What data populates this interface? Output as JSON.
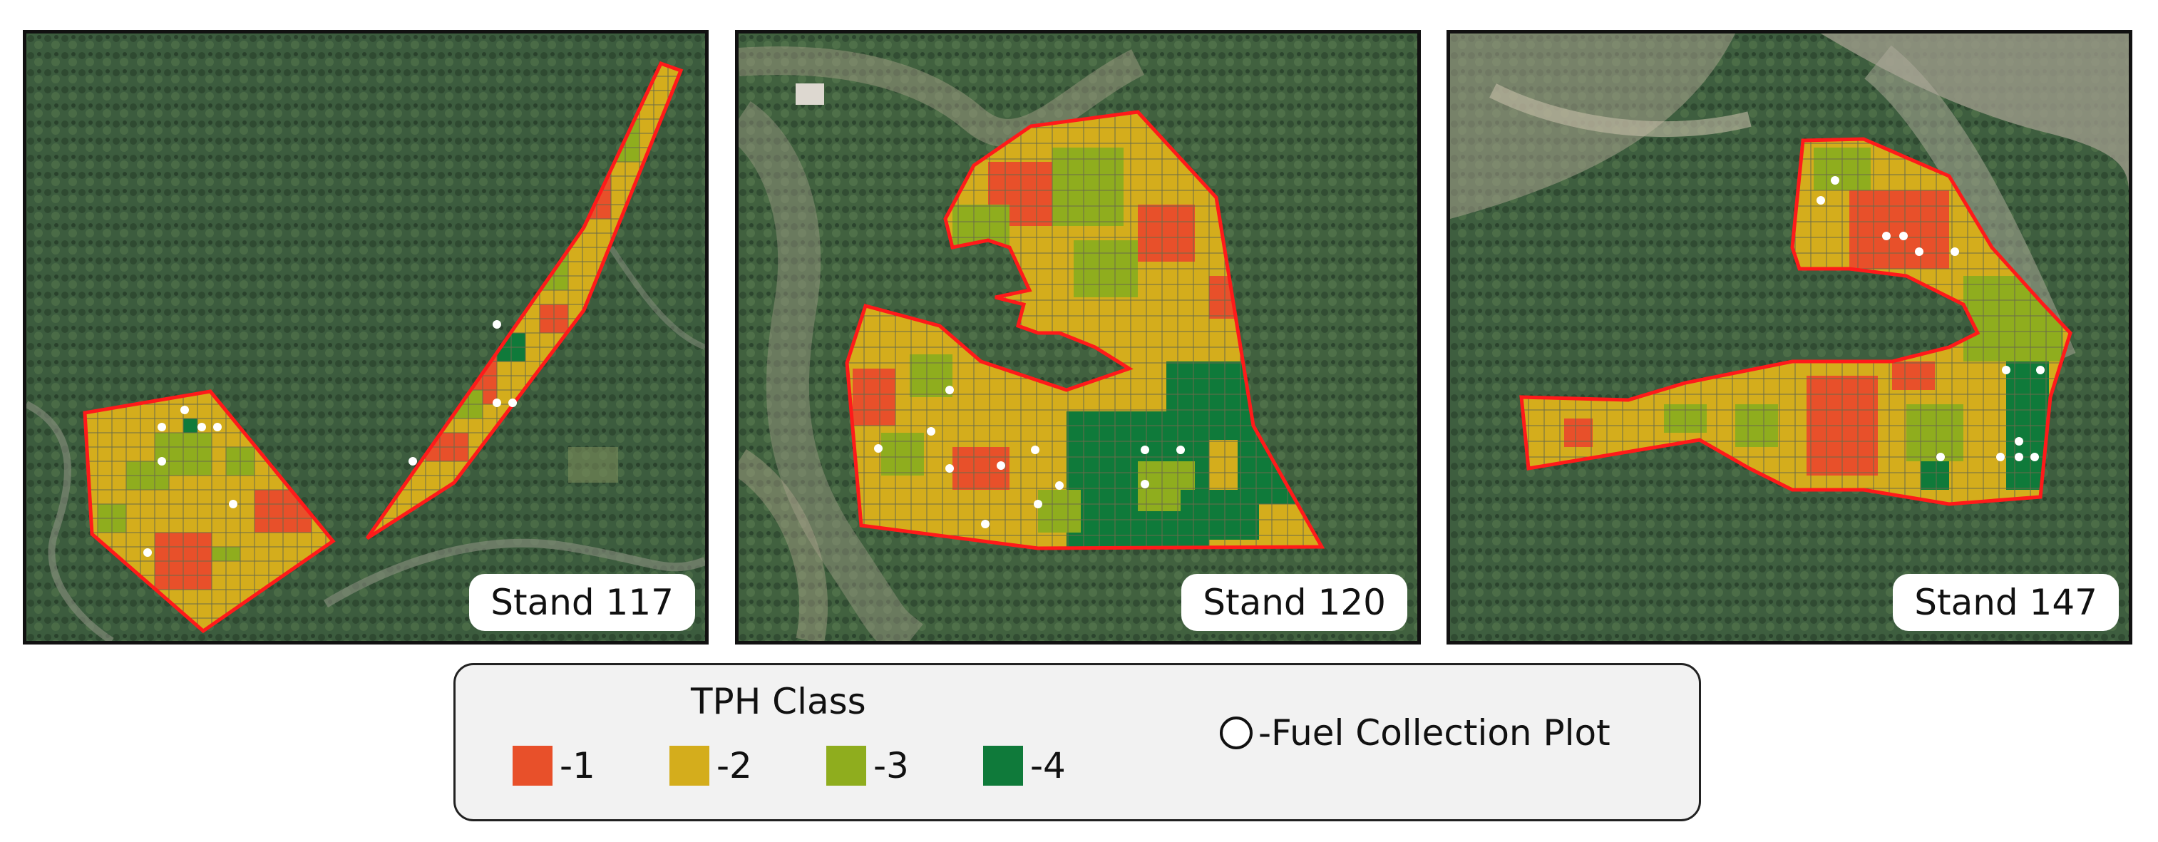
{
  "map": {
    "stands": [
      {
        "label": "Stand 117"
      },
      {
        "label": "Stand 120"
      },
      {
        "label": "Stand 147"
      }
    ]
  },
  "legend": {
    "title": "TPH Class",
    "classes": [
      {
        "label": "-1",
        "color": "#e8502a"
      },
      {
        "label": "-2",
        "color": "#d4ad1c"
      },
      {
        "label": "-3",
        "color": "#8fad1e"
      },
      {
        "label": "-4",
        "color": "#0f7a3a"
      }
    ],
    "plot_label": "-Fuel Collection Plot"
  },
  "colors": {
    "boundary": "#ff1a1a",
    "forest": "#3a5a3c",
    "plot_marker": "#ffffff"
  }
}
